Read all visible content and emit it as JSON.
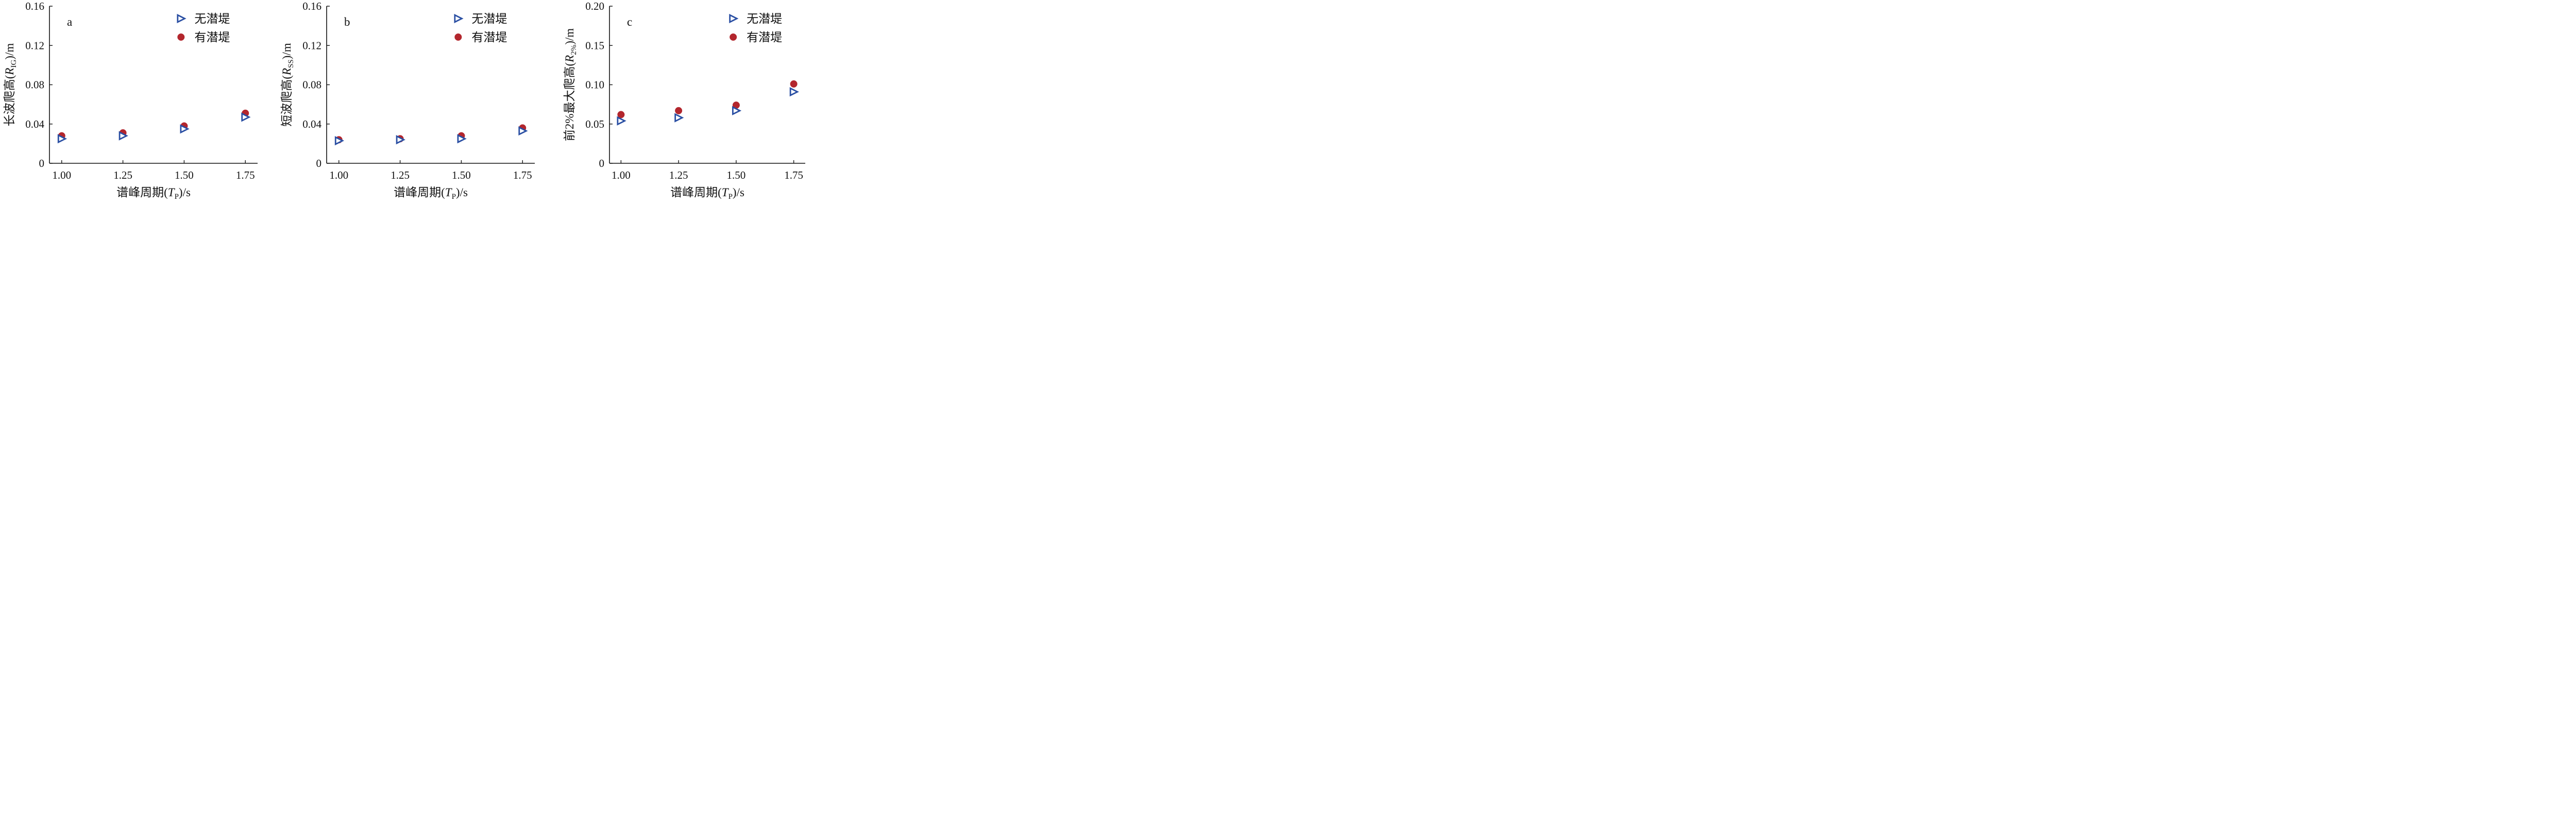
{
  "colors": {
    "series_no_berm": "#2a4fa3",
    "series_with_berm": "#b3262d",
    "axis": "#111111"
  },
  "chart_data": [
    {
      "type": "scatter",
      "panel_label": "a",
      "xlabel": {
        "prefix": "谱峰周期(",
        "var": "T",
        "sub": "P",
        "suffix": ")/s"
      },
      "ylabel": {
        "prefix": "长波爬高(",
        "var": "R",
        "sub": "IG",
        "suffix": ")/m"
      },
      "x_ticks": [
        "1.00",
        "1.25",
        "1.50",
        "1.75"
      ],
      "y_ticks": [
        "0",
        "0.04",
        "0.08",
        "0.12",
        "0.16"
      ],
      "xlim": [
        0.95,
        1.8
      ],
      "ylim": [
        0,
        0.16
      ],
      "grid": false,
      "legend_position": "top-right",
      "series": [
        {
          "name": "无潜堤",
          "marker": "open-right-triangle",
          "x": [
            1.0,
            1.25,
            1.5,
            1.75
          ],
          "y": [
            0.025,
            0.028,
            0.035,
            0.047
          ]
        },
        {
          "name": "有潜堤",
          "marker": "filled-circle",
          "x": [
            1.0,
            1.25,
            1.5,
            1.75
          ],
          "y": [
            0.028,
            0.031,
            0.038,
            0.051
          ]
        }
      ]
    },
    {
      "type": "scatter",
      "panel_label": "b",
      "xlabel": {
        "prefix": "谱峰周期(",
        "var": "T",
        "sub": "P",
        "suffix": ")/s"
      },
      "ylabel": {
        "prefix": "短波爬高(",
        "var": "R",
        "sub": "SS",
        "suffix": ")/m"
      },
      "x_ticks": [
        "1.00",
        "1.25",
        "1.50",
        "1.75"
      ],
      "y_ticks": [
        "0",
        "0.04",
        "0.08",
        "0.12",
        "0.16"
      ],
      "xlim": [
        0.95,
        1.8
      ],
      "ylim": [
        0,
        0.16
      ],
      "grid": false,
      "legend_position": "top-right",
      "series": [
        {
          "name": "无潜堤",
          "marker": "open-right-triangle",
          "x": [
            1.0,
            1.25,
            1.5,
            1.75
          ],
          "y": [
            0.023,
            0.024,
            0.025,
            0.033
          ]
        },
        {
          "name": "有潜堤",
          "marker": "filled-circle",
          "x": [
            1.0,
            1.25,
            1.5,
            1.75
          ],
          "y": [
            0.024,
            0.025,
            0.028,
            0.036
          ]
        }
      ]
    },
    {
      "type": "scatter",
      "panel_label": "c",
      "xlabel": {
        "prefix": "谱峰周期(",
        "var": "T",
        "sub": "P",
        "suffix": ")/s"
      },
      "ylabel": {
        "prefix": "前2%最大爬高(",
        "var": "R",
        "sub": "2%",
        "suffix": ")/m"
      },
      "x_ticks": [
        "1.00",
        "1.25",
        "1.50",
        "1.75"
      ],
      "y_ticks": [
        "0",
        "0.05",
        "0.10",
        "0.15",
        "0.20"
      ],
      "xlim": [
        0.95,
        1.8
      ],
      "ylim": [
        0,
        0.2
      ],
      "grid": false,
      "legend_position": "top-right",
      "series": [
        {
          "name": "无潜堤",
          "marker": "open-right-triangle",
          "x": [
            1.0,
            1.25,
            1.5,
            1.75
          ],
          "y": [
            0.054,
            0.058,
            0.067,
            0.091
          ]
        },
        {
          "name": "有潜堤",
          "marker": "filled-circle",
          "x": [
            1.0,
            1.25,
            1.5,
            1.75
          ],
          "y": [
            0.062,
            0.067,
            0.074,
            0.101
          ]
        }
      ]
    }
  ]
}
